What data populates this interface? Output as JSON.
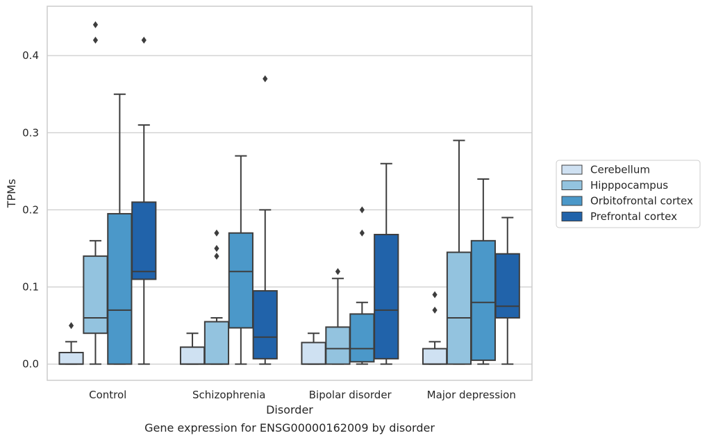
{
  "caption": "Gene expression for ENSG00000162009 by disorder",
  "chart_data": {
    "type": "box",
    "title": "",
    "xlabel": "Disorder",
    "ylabel": "TPMs",
    "ylim": [
      -0.021,
      0.464
    ],
    "yticks": [
      0.0,
      0.1,
      0.2,
      0.3,
      0.4
    ],
    "ytick_labels": [
      "0.0",
      "0.1",
      "0.2",
      "0.3",
      "0.4"
    ],
    "grid": "horizontal",
    "legend_placement": "right",
    "categories": [
      "Control",
      "Schizophrenia",
      "Bipolar disorder",
      "Major depression"
    ],
    "series": [
      {
        "name": "Cerebellum",
        "color": "#cfe1f2",
        "boxes": [
          {
            "low": 0.0,
            "q1": 0.0,
            "median": 0.0,
            "q3": 0.015,
            "high": 0.029,
            "outliers": [
              0.05
            ]
          },
          {
            "low": 0.0,
            "q1": 0.0,
            "median": 0.0,
            "q3": 0.022,
            "high": 0.04,
            "outliers": []
          },
          {
            "low": 0.0,
            "q1": 0.0,
            "median": 0.0,
            "q3": 0.028,
            "high": 0.04,
            "outliers": []
          },
          {
            "low": 0.0,
            "q1": 0.0,
            "median": 0.0,
            "q3": 0.02,
            "high": 0.029,
            "outliers": [
              0.07,
              0.09
            ]
          }
        ]
      },
      {
        "name": "Hipppocampus",
        "color": "#93c3df",
        "boxes": [
          {
            "low": 0.0,
            "q1": 0.04,
            "median": 0.06,
            "q3": 0.14,
            "high": 0.16,
            "outliers": [
              0.42,
              0.44
            ]
          },
          {
            "low": 0.0,
            "q1": 0.0,
            "median": 0.0,
            "q3": 0.055,
            "high": 0.06,
            "outliers": [
              0.14,
              0.15,
              0.17
            ]
          },
          {
            "low": 0.0,
            "q1": 0.0,
            "median": 0.02,
            "q3": 0.048,
            "high": 0.111,
            "outliers": [
              0.12
            ]
          },
          {
            "low": 0.0,
            "q1": 0.0,
            "median": 0.06,
            "q3": 0.145,
            "high": 0.29,
            "outliers": []
          }
        ]
      },
      {
        "name": "Orbitofrontal cortex",
        "color": "#4b98c9",
        "boxes": [
          {
            "low": 0.0,
            "q1": 0.0,
            "median": 0.07,
            "q3": 0.195,
            "high": 0.35,
            "outliers": []
          },
          {
            "low": 0.0,
            "q1": 0.047,
            "median": 0.12,
            "q3": 0.17,
            "high": 0.27,
            "outliers": []
          },
          {
            "low": 0.0,
            "q1": 0.003,
            "median": 0.02,
            "q3": 0.065,
            "high": 0.08,
            "outliers": [
              0.17,
              0.2
            ]
          },
          {
            "low": 0.0,
            "q1": 0.005,
            "median": 0.08,
            "q3": 0.16,
            "high": 0.24,
            "outliers": []
          }
        ]
      },
      {
        "name": "Prefrontal cortex",
        "color": "#2163aa",
        "boxes": [
          {
            "low": 0.0,
            "q1": 0.11,
            "median": 0.12,
            "q3": 0.21,
            "high": 0.31,
            "outliers": [
              0.42
            ]
          },
          {
            "low": 0.0,
            "q1": 0.007,
            "median": 0.035,
            "q3": 0.095,
            "high": 0.2,
            "outliers": [
              0.37
            ]
          },
          {
            "low": 0.0,
            "q1": 0.007,
            "median": 0.07,
            "q3": 0.168,
            "high": 0.26,
            "outliers": []
          },
          {
            "low": 0.0,
            "q1": 0.06,
            "median": 0.075,
            "q3": 0.143,
            "high": 0.19,
            "outliers": []
          }
        ]
      }
    ]
  }
}
